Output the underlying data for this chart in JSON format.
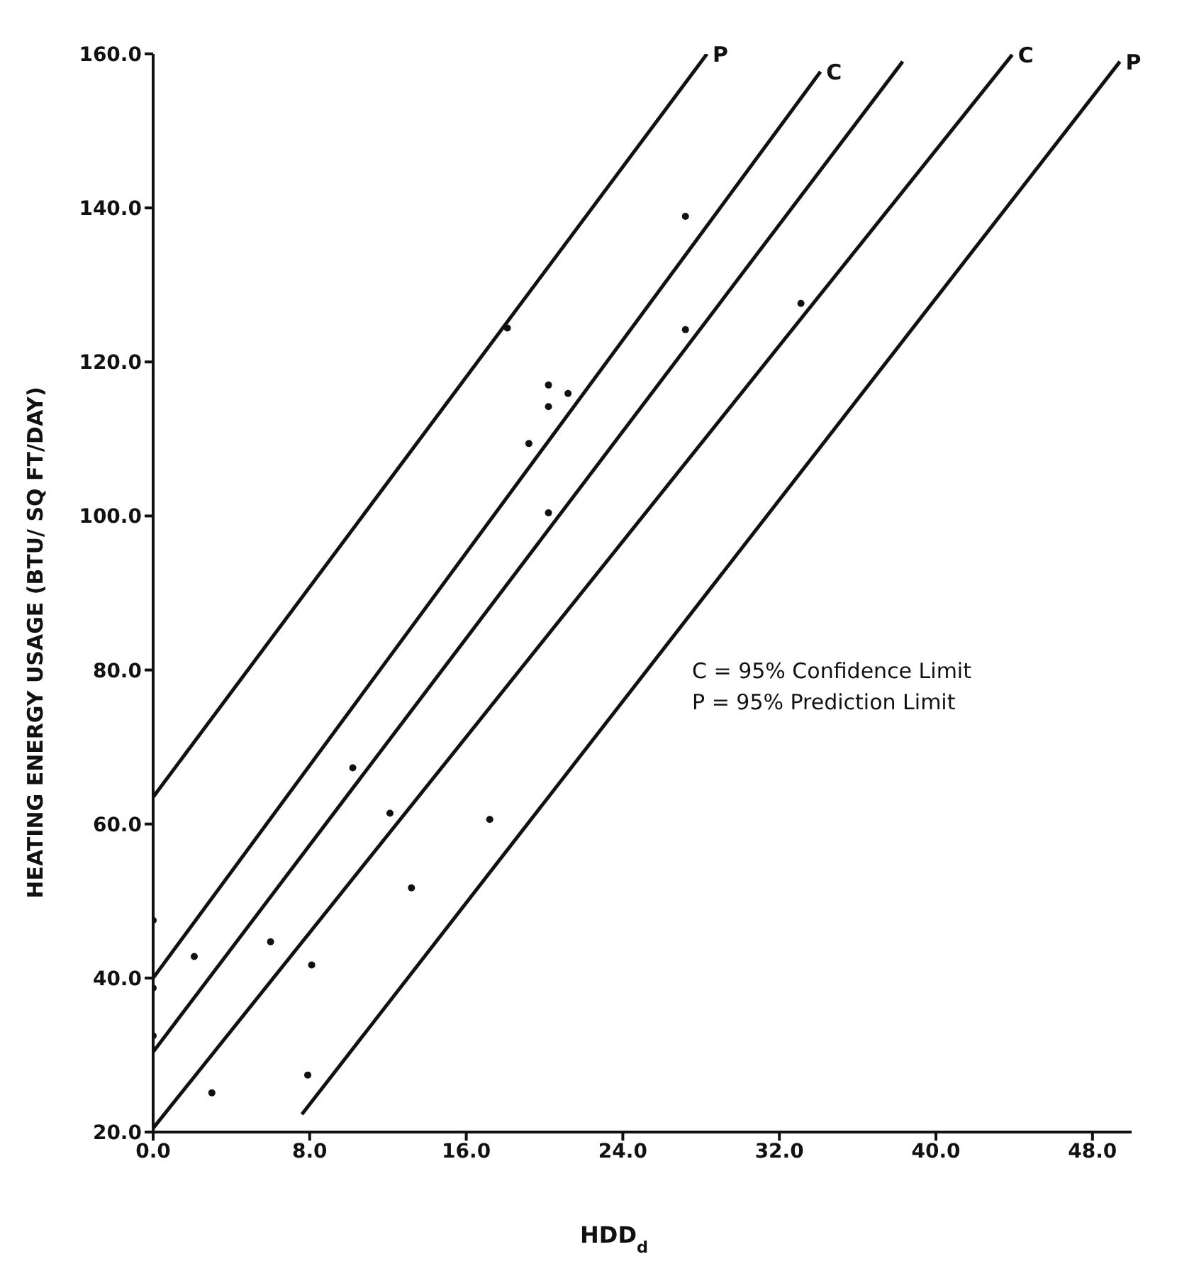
{
  "chart_data": {
    "type": "scatter",
    "xlabel": "HDD$_{d}$",
    "ylabel": "HEATING ENERGY USAGE (BTU/ SQ FT/DAY)",
    "xlim": [
      0,
      50
    ],
    "xticks": [
      {
        "value": 0,
        "label": "0.0"
      },
      {
        "value": 8,
        "label": "8.0"
      },
      {
        "value": 16,
        "label": "16.0"
      },
      {
        "value": 24,
        "label": "24.0"
      },
      {
        "value": 32,
        "label": "32.0"
      },
      {
        "value": 40,
        "label": "40.0"
      },
      {
        "value": 48,
        "label": "48.0"
      }
    ],
    "ylim": [
      20,
      160
    ],
    "yticks": [
      {
        "value": 20,
        "label": "20.0"
      },
      {
        "value": 40,
        "label": "40.0"
      },
      {
        "value": 60,
        "label": "60.0"
      },
      {
        "value": 80,
        "label": "80.0"
      },
      {
        "value": 100,
        "label": "100.0"
      },
      {
        "value": 120,
        "label": "120.0"
      },
      {
        "value": 140,
        "label": "140.0"
      },
      {
        "value": 160,
        "label": "160.0"
      }
    ],
    "grid": false,
    "series": [
      {
        "marker": "circle",
        "color": "#111111",
        "x": [
          0,
          0,
          0,
          2.1,
          3.0,
          6.0,
          7.9,
          8.1,
          10.2,
          12.1,
          13.2,
          17.2,
          18.1,
          19.2,
          20.2,
          20.2,
          20.2,
          21.2,
          27.2,
          27.2,
          33.1
        ],
        "values": [
          47.5,
          38.7,
          32.5,
          42.8,
          25.1,
          44.7,
          27.4,
          41.7,
          67.3,
          61.4,
          51.7,
          60.6,
          124.4,
          109.4,
          117.0,
          114.2,
          100.4,
          115.9,
          138.9,
          124.2,
          127.6
        ]
      },
      {
        "type": "line",
        "marker": "none",
        "color": "#111111",
        "x": [
          0,
          28.3
        ],
        "values": [
          63.5,
          160
        ]
      },
      {
        "type": "line",
        "marker": "none",
        "color": "#111111",
        "x": [
          0,
          34.1
        ],
        "values": [
          40,
          157.7
        ]
      },
      {
        "type": "line",
        "marker": "none",
        "color": "#111111",
        "x": [
          0,
          38.3
        ],
        "values": [
          30.4,
          159
        ]
      },
      {
        "type": "line",
        "marker": "none",
        "color": "#111111",
        "x": [
          0,
          43.9
        ],
        "values": [
          20.5,
          159.9
        ]
      },
      {
        "type": "line",
        "marker": "none",
        "color": "#111111",
        "x": [
          7.6,
          49.4
        ],
        "values": [
          22.3,
          159
        ]
      }
    ],
    "annotations": [
      {
        "text": "P",
        "x": 28.3,
        "y": 160
      },
      {
        "text": "C",
        "x": 34.1,
        "y": 157.7
      },
      {
        "text": "C",
        "x": 43.9,
        "y": 159.9
      },
      {
        "text": "P",
        "x": 49.4,
        "y": 159
      },
      "C = 95% Confidence Limit",
      "P = 95% Prediction Limit"
    ]
  }
}
